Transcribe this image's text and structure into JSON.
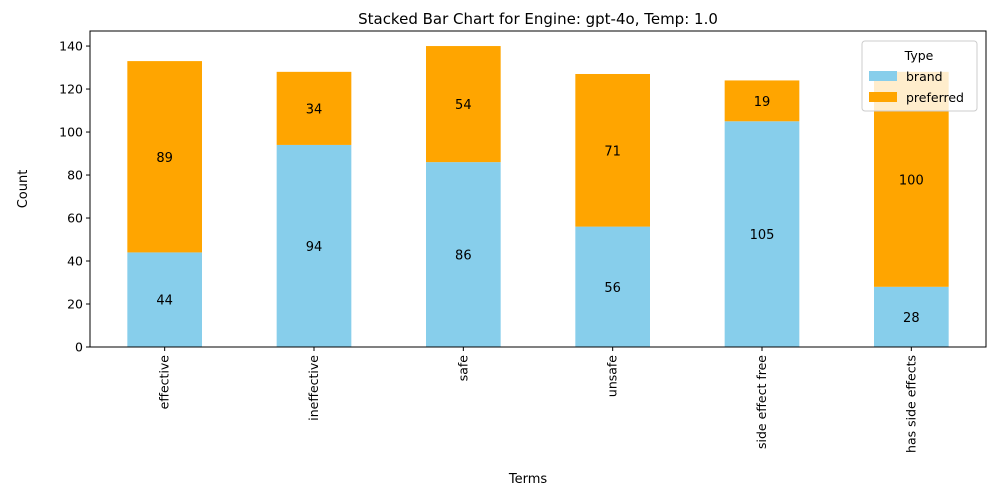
{
  "chart_data": {
    "type": "bar",
    "stacked": true,
    "title": "Stacked Bar Chart for Engine: gpt-4o, Temp: 1.0",
    "xlabel": "Terms",
    "ylabel": "Count",
    "categories": [
      "effective",
      "ineffective",
      "safe",
      "unsafe",
      "side effect free",
      "has side effects"
    ],
    "series": [
      {
        "name": "brand",
        "color": "#87ceeb",
        "values": [
          44,
          94,
          86,
          56,
          105,
          28
        ]
      },
      {
        "name": "preferred",
        "color": "#ffa500",
        "values": [
          89,
          34,
          54,
          71,
          19,
          100
        ]
      }
    ],
    "ylim": [
      0,
      147
    ],
    "yticks": [
      0,
      20,
      40,
      60,
      80,
      100,
      120,
      140
    ],
    "legend": {
      "title": "Type",
      "position": "top-right"
    },
    "grid": false
  }
}
